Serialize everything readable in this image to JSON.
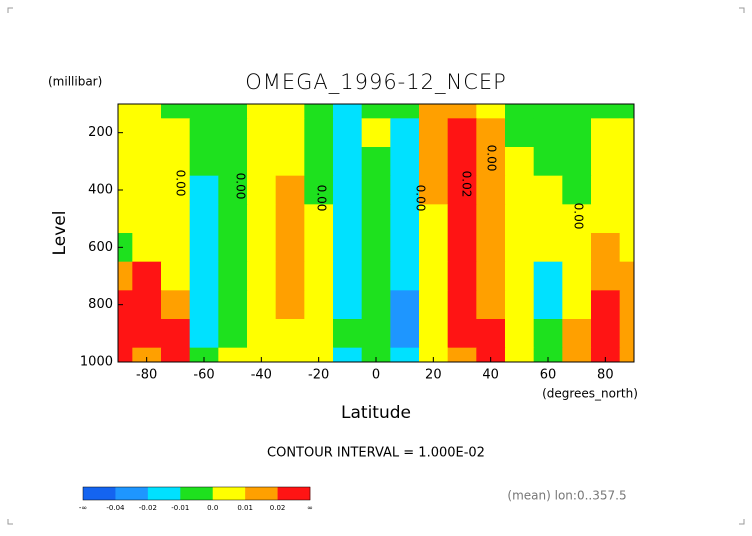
{
  "chart_data": {
    "type": "contour",
    "title": "OMEGA_1996-12_NCEP",
    "y_unit": "(millibar)",
    "y_label": "Level",
    "x_label": "Latitude",
    "x_unit": "(degrees_north)",
    "contour_interval": "CONTOUR INTERVAL = 1.000E-02",
    "note": "(mean) lon:0..357.5",
    "x": [
      -90,
      -80,
      -70,
      -60,
      -50,
      -40,
      -30,
      -20,
      -10,
      0,
      10,
      20,
      30,
      40,
      50,
      60,
      70,
      80,
      90
    ],
    "y": [
      100,
      200,
      300,
      400,
      500,
      600,
      700,
      800,
      900,
      1000
    ],
    "z": [
      [
        0.005,
        0.005,
        -0.005,
        -0.005,
        -0.005,
        0.005,
        0.005,
        -0.005,
        -0.015,
        -0.005,
        -0.005,
        0.015,
        0.015,
        0.005,
        -0.005,
        -0.005,
        -0.005,
        -0.005,
        -0.005
      ],
      [
        0.005,
        0.005,
        0.005,
        -0.005,
        -0.005,
        0.005,
        0.005,
        -0.005,
        -0.015,
        0.005,
        -0.015,
        0.015,
        0.03,
        0.015,
        -0.005,
        -0.005,
        -0.005,
        0.005,
        0.005
      ],
      [
        0.005,
        0.005,
        0.005,
        -0.005,
        -0.005,
        0.005,
        0.005,
        -0.005,
        -0.015,
        -0.005,
        -0.015,
        0.015,
        0.03,
        0.015,
        0.005,
        -0.005,
        -0.005,
        0.005,
        0.005
      ],
      [
        0.005,
        0.005,
        0.005,
        -0.015,
        -0.005,
        0.005,
        0.015,
        -0.005,
        -0.015,
        -0.005,
        -0.015,
        0.015,
        0.03,
        0.015,
        0.005,
        0.005,
        -0.005,
        0.005,
        0.005
      ],
      [
        0.005,
        0.005,
        0.005,
        -0.015,
        -0.005,
        0.005,
        0.015,
        0.005,
        -0.015,
        -0.005,
        -0.015,
        0.005,
        0.03,
        0.015,
        0.005,
        0.005,
        0.005,
        0.005,
        0.005
      ],
      [
        -0.005,
        0.005,
        0.005,
        -0.015,
        -0.005,
        0.005,
        0.015,
        0.005,
        -0.015,
        -0.005,
        -0.015,
        0.005,
        0.03,
        0.015,
        0.005,
        0.005,
        0.005,
        0.015,
        0.005
      ],
      [
        0.015,
        0.03,
        0.005,
        -0.015,
        -0.005,
        0.005,
        0.015,
        0.005,
        -0.015,
        -0.005,
        -0.015,
        0.005,
        0.03,
        0.015,
        0.005,
        -0.015,
        0.005,
        0.015,
        0.015
      ],
      [
        0.03,
        0.03,
        0.015,
        -0.015,
        -0.005,
        0.005,
        0.015,
        0.005,
        -0.015,
        -0.005,
        -0.03,
        0.005,
        0.03,
        0.015,
        0.005,
        -0.015,
        0.005,
        0.03,
        0.015
      ],
      [
        0.03,
        0.03,
        0.03,
        -0.015,
        -0.005,
        0.005,
        0.005,
        0.005,
        -0.005,
        -0.005,
        -0.03,
        0.005,
        0.03,
        0.03,
        0.005,
        -0.005,
        0.015,
        0.03,
        0.015
      ],
      [
        0.03,
        0.015,
        0.03,
        -0.005,
        0.005,
        0.005,
        0.005,
        0.005,
        -0.015,
        -0.005,
        -0.015,
        0.005,
        0.015,
        0.03,
        0.005,
        -0.005,
        0.015,
        0.03,
        0.015
      ]
    ],
    "xlim": [
      -90,
      90
    ],
    "ylim": [
      1000,
      100
    ],
    "xticks": [
      -80,
      -60,
      -40,
      -20,
      0,
      20,
      40,
      60,
      80
    ],
    "yticks": [
      200,
      400,
      600,
      800,
      1000
    ],
    "contour_labels": [
      "0.00",
      "0.00",
      "0.00",
      "0.00",
      "0.02",
      "0.00",
      "0.00"
    ],
    "colorbar": {
      "bounds": [
        "-∞",
        -0.04,
        -0.02,
        -0.01,
        {
          "value": 0,
          "label": "0.0"
        },
        0.01,
        0.02,
        "∞"
      ],
      "colors": [
        "#1464f0",
        "#1e96ff",
        "#00e1ff",
        "#1ee11e",
        "#ffff00",
        "#ffa000",
        "#ff1414"
      ]
    }
  }
}
